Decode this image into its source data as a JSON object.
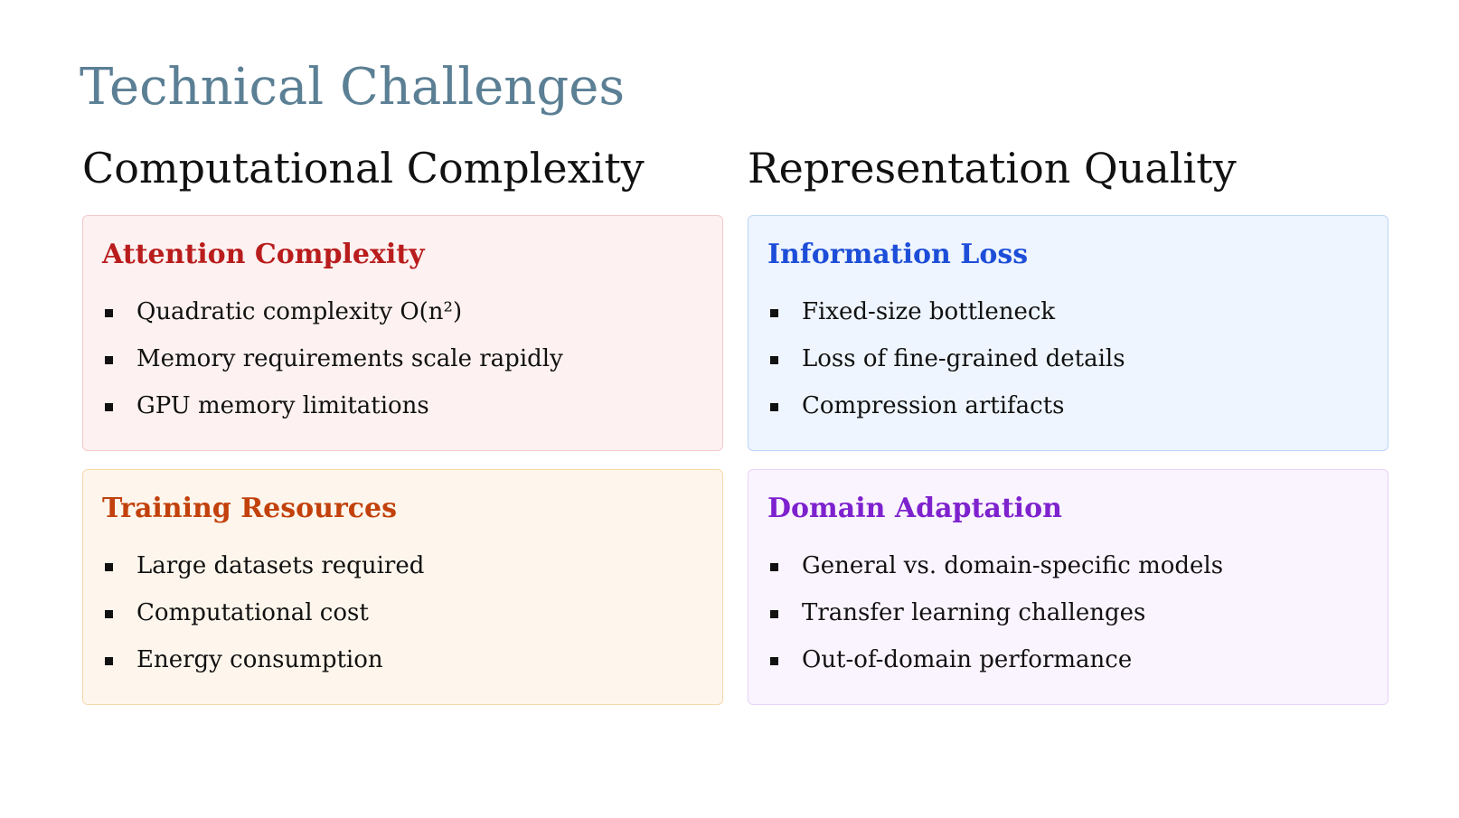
{
  "title": "Technical Challenges",
  "columns": [
    {
      "heading": "Computational Complexity",
      "cards": [
        {
          "title": "Attention Complexity",
          "items": [
            "Quadratic complexity O(n²)",
            "Memory requirements scale rapidly",
            "GPU memory limitations"
          ]
        },
        {
          "title": "Training Resources",
          "items": [
            "Large datasets required",
            "Computational cost",
            "Energy consumption"
          ]
        }
      ]
    },
    {
      "heading": "Representation Quality",
      "cards": [
        {
          "title": "Information Loss",
          "items": [
            "Fixed-size bottleneck",
            "Loss of fine-grained details",
            "Compression artifacts"
          ]
        },
        {
          "title": "Domain Adaptation",
          "items": [
            "General vs. domain-specific models",
            "Transfer learning challenges",
            "Out-of-domain performance"
          ]
        }
      ]
    }
  ],
  "colors": {
    "title": "#5b7f94",
    "attention_complexity": {
      "background": "#fdf1f1",
      "border": "#f5c9c9",
      "title": "#b91c1c"
    },
    "training_resources": {
      "background": "#fef6ec",
      "border": "#f8d7ac",
      "title": "#c2410c"
    },
    "information_loss": {
      "background": "#eef5fe",
      "border": "#bcd6f7",
      "title": "#1d4ed8"
    },
    "domain_adaptation": {
      "background": "#faf4fe",
      "border": "#e7d3f8",
      "title": "#7e22ce"
    }
  }
}
